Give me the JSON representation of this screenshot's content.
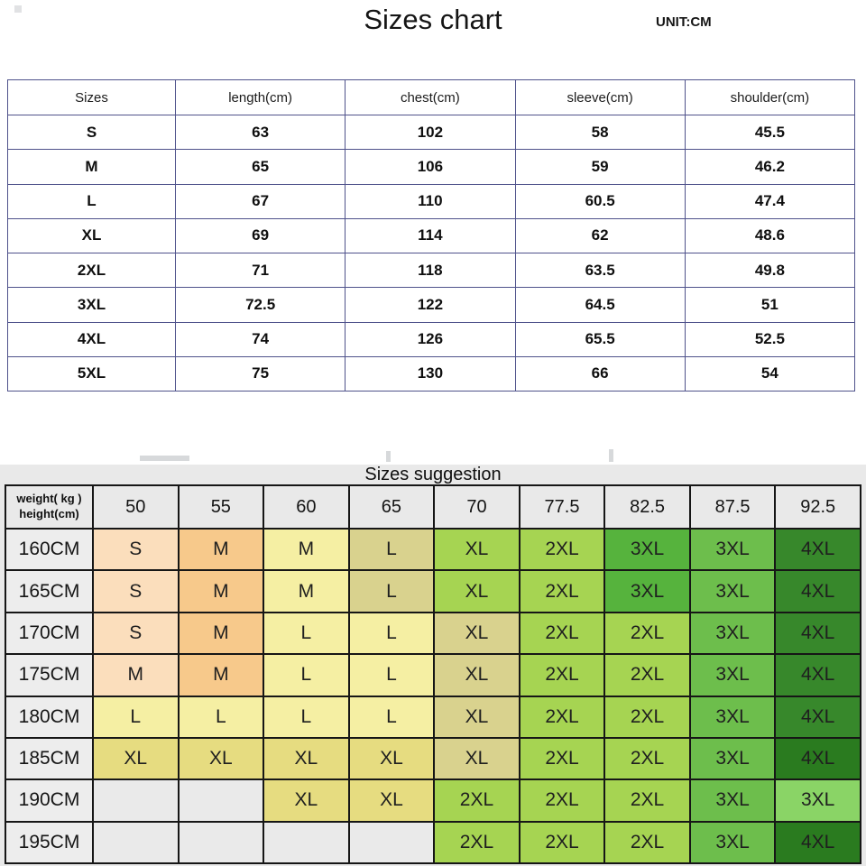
{
  "page": {
    "title": "Sizes chart",
    "unit_label": "UNIT:CM",
    "suggestion_title": "Sizes suggestion"
  },
  "chart_data": [
    {
      "type": "table",
      "title": "Sizes chart",
      "unit": "UNIT:CM",
      "columns": [
        "Sizes",
        "length(cm)",
        "chest(cm)",
        "sleeve(cm)",
        "shoulder(cm)"
      ],
      "rows": [
        [
          "S",
          "63",
          "102",
          "58",
          "45.5"
        ],
        [
          "M",
          "65",
          "106",
          "59",
          "46.2"
        ],
        [
          "L",
          "67",
          "110",
          "60.5",
          "47.4"
        ],
        [
          "XL",
          "69",
          "114",
          "62",
          "48.6"
        ],
        [
          "2XL",
          "71",
          "118",
          "63.5",
          "49.8"
        ],
        [
          "3XL",
          "72.5",
          "122",
          "64.5",
          "51"
        ],
        [
          "4XL",
          "74",
          "126",
          "65.5",
          "52.5"
        ],
        [
          "5XL",
          "75",
          "130",
          "66",
          "54"
        ]
      ],
      "border_color": "#4f528b"
    },
    {
      "type": "table",
      "title": "Sizes suggestion",
      "corner": {
        "line1": "weight( kg )",
        "line2": "height(cm)"
      },
      "weight_columns": [
        "50",
        "55",
        "60",
        "65",
        "70",
        "77.5",
        "82.5",
        "87.5",
        "92.5"
      ],
      "height_rows": [
        "160CM",
        "165CM",
        "170CM",
        "175CM",
        "180CM",
        "185CM",
        "190CM",
        "195CM"
      ],
      "palette": {
        "peach": "#fbdebc",
        "orange": "#f7c98b",
        "paleYellow": "#f5efa3",
        "khaki": "#d9d28e",
        "yellow": "#e6dc80",
        "green": "#a6d452",
        "mediumGreen": "#6dbe4c",
        "deepGreen": "#56b33d",
        "lightGreen": "#8ad466",
        "darkGreen": "#37882b",
        "darkestGreen": "#2a7b1f",
        "empty": "#eaeaea"
      },
      "cells": [
        [
          {
            "l": "S",
            "c": "peach"
          },
          {
            "l": "M",
            "c": "orange"
          },
          {
            "l": "M",
            "c": "paleYellow"
          },
          {
            "l": "L",
            "c": "khaki"
          },
          {
            "l": "XL",
            "c": "green"
          },
          {
            "l": "2XL",
            "c": "green"
          },
          {
            "l": "3XL",
            "c": "deepGreen"
          },
          {
            "l": "3XL",
            "c": "mediumGreen"
          },
          {
            "l": "4XL",
            "c": "darkGreen"
          }
        ],
        [
          {
            "l": "S",
            "c": "peach"
          },
          {
            "l": "M",
            "c": "orange"
          },
          {
            "l": "M",
            "c": "paleYellow"
          },
          {
            "l": "L",
            "c": "khaki"
          },
          {
            "l": "XL",
            "c": "green"
          },
          {
            "l": "2XL",
            "c": "green"
          },
          {
            "l": "3XL",
            "c": "deepGreen"
          },
          {
            "l": "3XL",
            "c": "mediumGreen"
          },
          {
            "l": "4XL",
            "c": "darkGreen"
          }
        ],
        [
          {
            "l": "S",
            "c": "peach"
          },
          {
            "l": "M",
            "c": "orange"
          },
          {
            "l": "L",
            "c": "paleYellow"
          },
          {
            "l": "L",
            "c": "paleYellow"
          },
          {
            "l": "XL",
            "c": "khaki"
          },
          {
            "l": "2XL",
            "c": "green"
          },
          {
            "l": "2XL",
            "c": "green"
          },
          {
            "l": "3XL",
            "c": "mediumGreen"
          },
          {
            "l": "4XL",
            "c": "darkGreen"
          }
        ],
        [
          {
            "l": "M",
            "c": "peach"
          },
          {
            "l": "M",
            "c": "orange"
          },
          {
            "l": "L",
            "c": "paleYellow"
          },
          {
            "l": "L",
            "c": "paleYellow"
          },
          {
            "l": "XL",
            "c": "khaki"
          },
          {
            "l": "2XL",
            "c": "green"
          },
          {
            "l": "2XL",
            "c": "green"
          },
          {
            "l": "3XL",
            "c": "mediumGreen"
          },
          {
            "l": "4XL",
            "c": "darkGreen"
          }
        ],
        [
          {
            "l": "L",
            "c": "paleYellow"
          },
          {
            "l": "L",
            "c": "paleYellow"
          },
          {
            "l": "L",
            "c": "paleYellow"
          },
          {
            "l": "L",
            "c": "paleYellow"
          },
          {
            "l": "XL",
            "c": "khaki"
          },
          {
            "l": "2XL",
            "c": "green"
          },
          {
            "l": "2XL",
            "c": "green"
          },
          {
            "l": "3XL",
            "c": "mediumGreen"
          },
          {
            "l": "4XL",
            "c": "darkGreen"
          }
        ],
        [
          {
            "l": "XL",
            "c": "yellow"
          },
          {
            "l": "XL",
            "c": "yellow"
          },
          {
            "l": "XL",
            "c": "yellow"
          },
          {
            "l": "XL",
            "c": "yellow"
          },
          {
            "l": "XL",
            "c": "khaki"
          },
          {
            "l": "2XL",
            "c": "green"
          },
          {
            "l": "2XL",
            "c": "green"
          },
          {
            "l": "3XL",
            "c": "mediumGreen"
          },
          {
            "l": "4XL",
            "c": "darkestGreen"
          }
        ],
        [
          {
            "l": "",
            "c": "empty"
          },
          {
            "l": "",
            "c": "empty"
          },
          {
            "l": "XL",
            "c": "yellow"
          },
          {
            "l": "XL",
            "c": "yellow"
          },
          {
            "l": "2XL",
            "c": "green"
          },
          {
            "l": "2XL",
            "c": "green"
          },
          {
            "l": "2XL",
            "c": "green"
          },
          {
            "l": "3XL",
            "c": "mediumGreen"
          },
          {
            "l": "3XL",
            "c": "lightGreen"
          }
        ],
        [
          {
            "l": "",
            "c": "empty"
          },
          {
            "l": "",
            "c": "empty"
          },
          {
            "l": "",
            "c": "empty"
          },
          {
            "l": "",
            "c": "empty"
          },
          {
            "l": "2XL",
            "c": "green"
          },
          {
            "l": "2XL",
            "c": "green"
          },
          {
            "l": "2XL",
            "c": "green"
          },
          {
            "l": "3XL",
            "c": "mediumGreen"
          },
          {
            "l": "4XL",
            "c": "darkestGreen"
          }
        ]
      ]
    }
  ]
}
